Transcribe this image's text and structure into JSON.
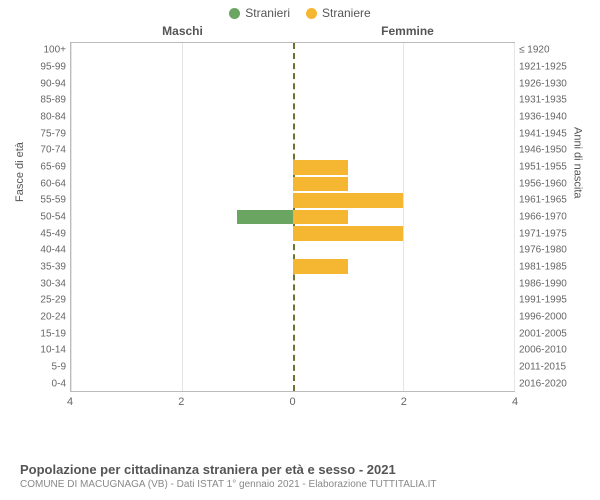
{
  "legend": {
    "male_label": "Stranieri",
    "female_label": "Straniere",
    "male_color": "#6aa562",
    "female_color": "#f5b731"
  },
  "headers": {
    "male": "Maschi",
    "female": "Femmine"
  },
  "axis": {
    "left_title": "Fasce di età",
    "right_title": "Anni di nascita",
    "max_value": 4,
    "tick_step": 2,
    "x_ticks_left": [
      4,
      2,
      0
    ],
    "x_ticks_right": [
      0,
      2,
      4
    ],
    "grid_color": "#e5e5e5",
    "border_color": "#bbbbbb",
    "center_line_color": "#707030"
  },
  "rows": [
    {
      "age": "100+",
      "birth": "≤ 1920",
      "m": 0,
      "f": 0
    },
    {
      "age": "95-99",
      "birth": "1921-1925",
      "m": 0,
      "f": 0
    },
    {
      "age": "90-94",
      "birth": "1926-1930",
      "m": 0,
      "f": 0
    },
    {
      "age": "85-89",
      "birth": "1931-1935",
      "m": 0,
      "f": 0
    },
    {
      "age": "80-84",
      "birth": "1936-1940",
      "m": 0,
      "f": 0
    },
    {
      "age": "75-79",
      "birth": "1941-1945",
      "m": 0,
      "f": 0
    },
    {
      "age": "70-74",
      "birth": "1946-1950",
      "m": 0,
      "f": 0
    },
    {
      "age": "65-69",
      "birth": "1951-1955",
      "m": 0,
      "f": 1
    },
    {
      "age": "60-64",
      "birth": "1956-1960",
      "m": 0,
      "f": 1
    },
    {
      "age": "55-59",
      "birth": "1961-1965",
      "m": 0,
      "f": 2
    },
    {
      "age": "50-54",
      "birth": "1966-1970",
      "m": 1,
      "f": 1
    },
    {
      "age": "45-49",
      "birth": "1971-1975",
      "m": 0,
      "f": 2
    },
    {
      "age": "40-44",
      "birth": "1976-1980",
      "m": 0,
      "f": 0
    },
    {
      "age": "35-39",
      "birth": "1981-1985",
      "m": 0,
      "f": 1
    },
    {
      "age": "30-34",
      "birth": "1986-1990",
      "m": 0,
      "f": 0
    },
    {
      "age": "25-29",
      "birth": "1991-1995",
      "m": 0,
      "f": 0
    },
    {
      "age": "20-24",
      "birth": "1996-2000",
      "m": 0,
      "f": 0
    },
    {
      "age": "15-19",
      "birth": "2001-2005",
      "m": 0,
      "f": 0
    },
    {
      "age": "10-14",
      "birth": "2006-2010",
      "m": 0,
      "f": 0
    },
    {
      "age": "5-9",
      "birth": "2011-2015",
      "m": 0,
      "f": 0
    },
    {
      "age": "0-4",
      "birth": "2016-2020",
      "m": 0,
      "f": 0
    }
  ],
  "footer": {
    "title": "Popolazione per cittadinanza straniera per età e sesso - 2021",
    "subtitle": "COMUNE DI MACUGNAGA (VB) - Dati ISTAT 1° gennaio 2021 - Elaborazione TUTTITALIA.IT"
  },
  "colors": {
    "background": "#ffffff",
    "text": "#555555",
    "text_muted": "#888888"
  }
}
